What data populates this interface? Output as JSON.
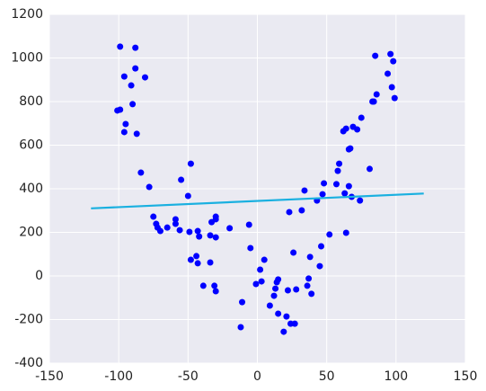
{
  "chart_data": {
    "type": "scatter",
    "xlim": [
      -150,
      150
    ],
    "xticks": [
      -150,
      -100,
      -50,
      0,
      50,
      100,
      150
    ],
    "ylim": [
      -400,
      1200
    ],
    "yticks": [
      -400,
      -200,
      0,
      200,
      400,
      600,
      800,
      1000,
      1200
    ],
    "grid": true,
    "series": [
      {
        "color": "#0000ff",
        "mode": "points",
        "x": [
          -99,
          -88,
          -96,
          -88,
          -91,
          -81,
          -99,
          -101,
          -90,
          -95,
          -96,
          -87,
          -84,
          -78,
          -75,
          -73,
          -72,
          -70,
          -65,
          -59,
          -59,
          -56,
          -55,
          -50,
          -48,
          -49,
          -43,
          -42,
          -48,
          -44,
          -43,
          -39,
          -34,
          -33,
          -30,
          -30,
          -30,
          -34,
          -31,
          -30,
          -20,
          -11,
          -12,
          -6,
          -5,
          -1,
          2,
          3,
          5,
          9,
          12,
          13,
          14,
          15,
          15,
          19,
          21,
          22,
          23,
          24,
          27,
          26,
          28,
          32,
          34,
          36,
          37,
          38,
          39,
          43,
          45,
          46,
          47,
          48,
          52,
          57,
          58,
          59,
          62,
          64,
          63,
          64,
          66,
          67,
          66,
          68,
          69,
          72,
          74,
          75,
          81,
          83,
          84,
          85,
          86,
          94,
          96,
          97,
          98,
          99
        ],
        "values": [
          1052,
          1047,
          915,
          952,
          874,
          911,
          763,
          759,
          788,
          697,
          660,
          652,
          474,
          408,
          272,
          239,
          222,
          206,
          222,
          260,
          239,
          210,
          441,
          367,
          515,
          202,
          206,
          181,
          74,
          91,
          58,
          -45,
          186,
          247,
          272,
          260,
          177,
          62,
          -45,
          -70,
          219,
          -120,
          -235,
          235,
          128,
          -37,
          29,
          -25,
          74,
          -136,
          -91,
          -58,
          -29,
          -16,
          -173,
          -256,
          -186,
          -66,
          293,
          -219,
          -219,
          107,
          -62,
          301,
          392,
          -45,
          -12,
          87,
          -82,
          346,
          45,
          136,
          375,
          425,
          190,
          421,
          482,
          515,
          664,
          676,
          379,
          198,
          581,
          585,
          412,
          363,
          684,
          672,
          346,
          726,
          491,
          800,
          800,
          1010,
          833,
          928,
          1018,
          866,
          985,
          816
        ]
      },
      {
        "color": "#1ab0e0",
        "mode": "line",
        "x": [
          -120,
          120
        ],
        "values": [
          310,
          378
        ]
      }
    ]
  }
}
